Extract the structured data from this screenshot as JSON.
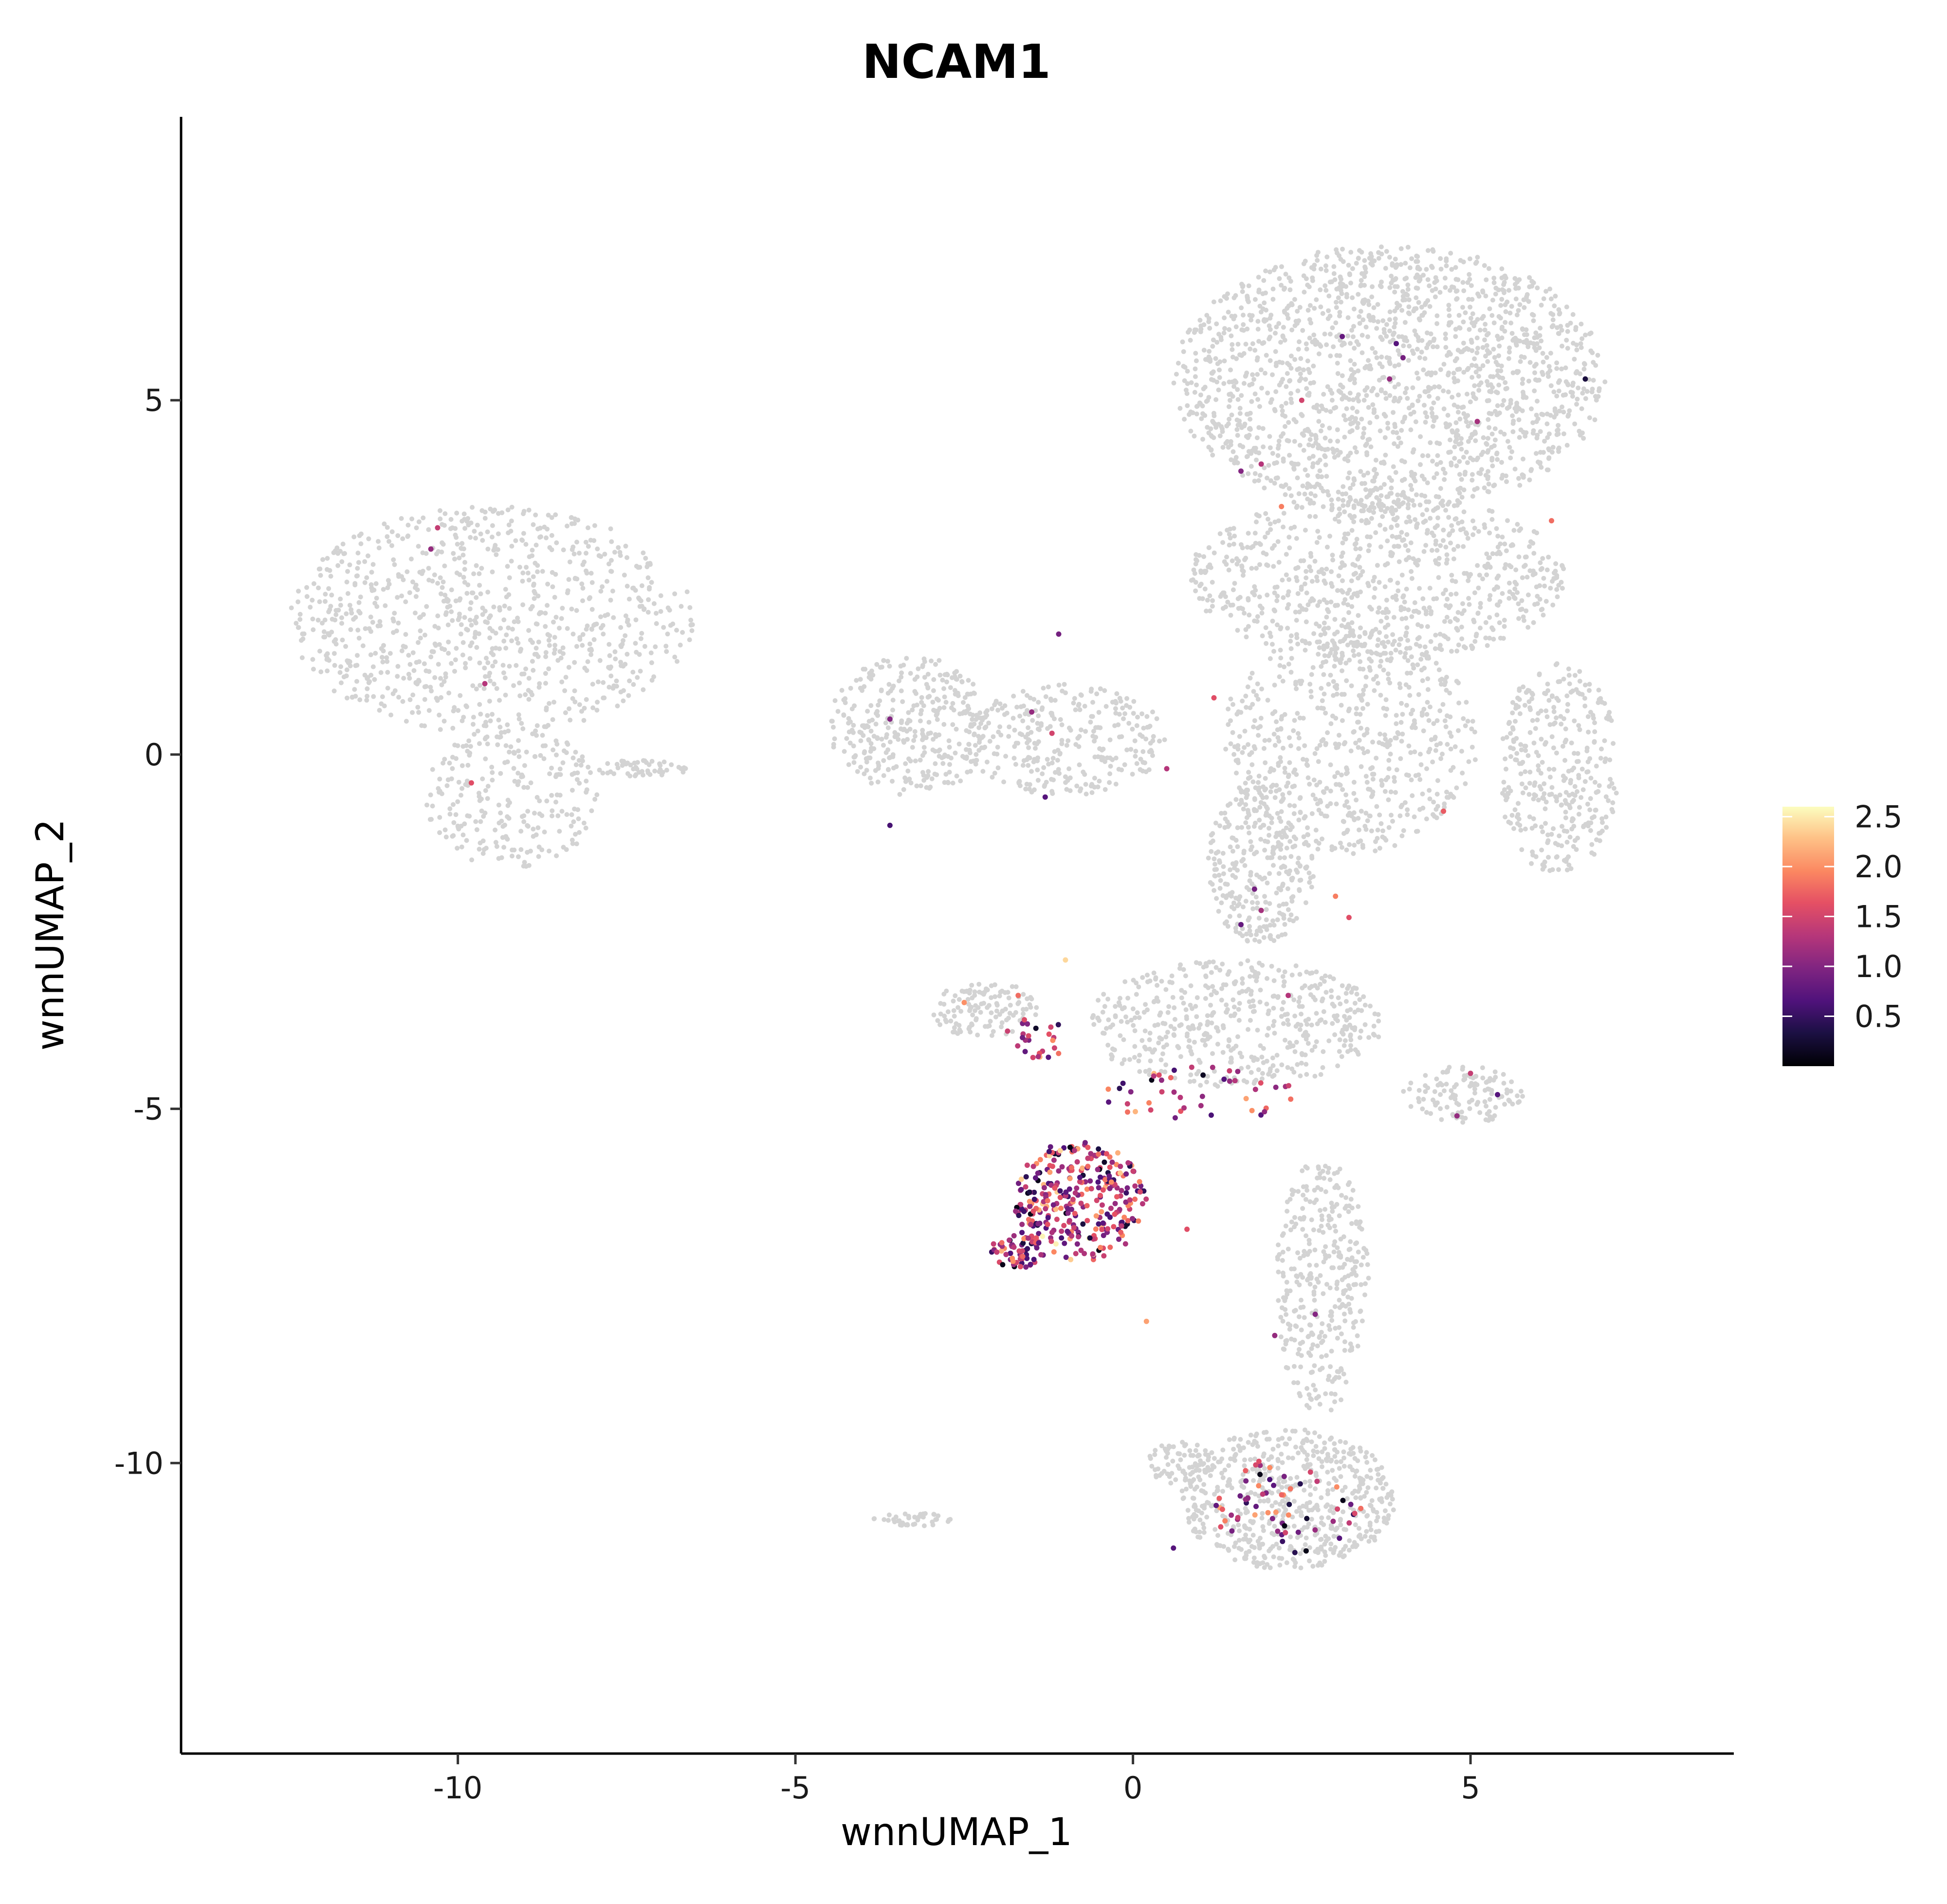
{
  "chart_data": {
    "type": "scatter",
    "title": "NCAM1",
    "xlabel": "wnnUMAP_1",
    "ylabel": "wnnUMAP_2",
    "xlim": [
      -14.1,
      8.9
    ],
    "ylim": [
      -14.1,
      9.0
    ],
    "x_ticks": [
      -10,
      -5,
      0,
      5
    ],
    "x_tick_labels": [
      "-10",
      "-5",
      "0",
      "5"
    ],
    "y_ticks": [
      5,
      0,
      -5,
      -10
    ],
    "y_tick_labels": [
      "5",
      "0",
      "-5",
      "-10"
    ],
    "background_color": "#d3d3d3",
    "colormap": "magma",
    "color_range": [
      0.0,
      2.6
    ],
    "legend": {
      "position": "right",
      "ticks": [
        2.5,
        2.0,
        1.5,
        1.0,
        0.5
      ],
      "tick_labels": [
        "2.5",
        "2.0",
        "1.5",
        "1.0",
        "0.5"
      ]
    },
    "background_clusters": [
      {
        "name": "left island",
        "cx": -9.5,
        "cy": 1.9,
        "rx": 3.0,
        "ry": 1.6,
        "n": 900
      },
      {
        "name": "left island tail",
        "cx": -9.2,
        "cy": -0.6,
        "rx": 1.3,
        "ry": 1.0,
        "n": 250
      },
      {
        "name": "streak",
        "cx": -7.3,
        "cy": -0.2,
        "rx": 0.7,
        "ry": 0.12,
        "n": 50
      },
      {
        "name": "mid left",
        "cx": -3.3,
        "cy": 0.4,
        "rx": 1.2,
        "ry": 1.0,
        "n": 350
      },
      {
        "name": "mid bridge",
        "cx": -1.0,
        "cy": 0.2,
        "rx": 1.5,
        "ry": 0.8,
        "n": 300
      },
      {
        "name": "top dome",
        "cx": 3.8,
        "cy": 5.3,
        "rx": 3.2,
        "ry": 1.9,
        "n": 1700
      },
      {
        "name": "top middle",
        "cx": 3.6,
        "cy": 2.5,
        "rx": 2.8,
        "ry": 1.2,
        "n": 800
      },
      {
        "name": "center",
        "cx": 3.2,
        "cy": 0.2,
        "rx": 1.9,
        "ry": 1.6,
        "n": 600
      },
      {
        "name": "right lobe",
        "cx": 6.3,
        "cy": -0.2,
        "rx": 0.9,
        "ry": 1.5,
        "n": 350
      },
      {
        "name": "stem",
        "cx": 1.9,
        "cy": -1.5,
        "rx": 0.8,
        "ry": 1.2,
        "n": 300
      },
      {
        "name": "lower band",
        "cx": 1.5,
        "cy": -3.8,
        "rx": 2.2,
        "ry": 0.9,
        "n": 500
      },
      {
        "name": "right arm",
        "cx": 4.9,
        "cy": -4.8,
        "rx": 0.9,
        "ry": 0.4,
        "n": 120
      },
      {
        "name": "lower stem",
        "cx": 2.8,
        "cy": -7.5,
        "rx": 0.7,
        "ry": 1.8,
        "n": 350
      },
      {
        "name": "bottom blob",
        "cx": 2.3,
        "cy": -10.5,
        "rx": 1.6,
        "ry": 1.0,
        "n": 600
      },
      {
        "name": "bottom left",
        "cx": 0.7,
        "cy": -10.0,
        "rx": 0.5,
        "ry": 0.3,
        "n": 70
      },
      {
        "name": "left arm",
        "cx": -2.2,
        "cy": -3.6,
        "rx": 0.8,
        "ry": 0.4,
        "n": 120
      },
      {
        "name": "small fragment",
        "cx": -3.3,
        "cy": -10.8,
        "rx": 0.6,
        "ry": 0.1,
        "n": 40
      }
    ],
    "expressing_clusters": [
      {
        "name": "NK cluster",
        "cx": -0.8,
        "cy": -6.3,
        "rx": 1.0,
        "ry": 0.85,
        "n": 320
      },
      {
        "name": "NK tip",
        "cx": -1.7,
        "cy": -7.0,
        "rx": 0.4,
        "ry": 0.25,
        "n": 60
      },
      {
        "name": "trail",
        "cx": 0.9,
        "cy": -4.8,
        "rx": 1.5,
        "ry": 0.4,
        "n": 45
      },
      {
        "name": "upper left",
        "cx": -1.4,
        "cy": -4.0,
        "rx": 0.5,
        "ry": 0.3,
        "n": 25
      },
      {
        "name": "bottom blob",
        "cx": 2.3,
        "cy": -10.6,
        "rx": 1.1,
        "ry": 0.7,
        "n": 60
      }
    ],
    "points": [
      {
        "x": -10.3,
        "y": 3.2,
        "value": 1.4
      },
      {
        "x": -10.4,
        "y": 2.9,
        "value": 1.1
      },
      {
        "x": -9.6,
        "y": 1.0,
        "value": 1.3
      },
      {
        "x": -9.8,
        "y": -0.4,
        "value": 1.6
      },
      {
        "x": -3.6,
        "y": 0.5,
        "value": 1.0
      },
      {
        "x": -3.6,
        "y": -1.0,
        "value": 0.6
      },
      {
        "x": -1.1,
        "y": 1.7,
        "value": 0.9
      },
      {
        "x": -1.5,
        "y": 0.6,
        "value": 1.1
      },
      {
        "x": -1.2,
        "y": 0.3,
        "value": 1.5
      },
      {
        "x": -1.3,
        "y": -0.6,
        "value": 0.7
      },
      {
        "x": 0.5,
        "y": -0.2,
        "value": 1.3
      },
      {
        "x": 1.2,
        "y": 0.8,
        "value": 1.6
      },
      {
        "x": 2.5,
        "y": 5.0,
        "value": 1.5
      },
      {
        "x": 3.1,
        "y": 5.9,
        "value": 0.8
      },
      {
        "x": 3.9,
        "y": 5.8,
        "value": 0.7
      },
      {
        "x": 3.8,
        "y": 5.3,
        "value": 1.1
      },
      {
        "x": 4.0,
        "y": 5.6,
        "value": 0.9
      },
      {
        "x": 5.1,
        "y": 4.7,
        "value": 1.2
      },
      {
        "x": 6.7,
        "y": 5.3,
        "value": 0.3
      },
      {
        "x": 1.6,
        "y": 4.0,
        "value": 1.0
      },
      {
        "x": 1.9,
        "y": 4.1,
        "value": 1.3
      },
      {
        "x": 2.2,
        "y": 3.5,
        "value": 1.9
      },
      {
        "x": 6.2,
        "y": 3.3,
        "value": 1.8
      },
      {
        "x": 4.6,
        "y": -0.8,
        "value": 1.7
      },
      {
        "x": 1.8,
        "y": -1.9,
        "value": 0.9
      },
      {
        "x": 1.9,
        "y": -2.2,
        "value": 1.2
      },
      {
        "x": 1.6,
        "y": -2.4,
        "value": 0.8
      },
      {
        "x": 3.0,
        "y": -2.0,
        "value": 1.9
      },
      {
        "x": 3.2,
        "y": -2.3,
        "value": 1.6
      },
      {
        "x": 2.3,
        "y": -3.4,
        "value": 1.3
      },
      {
        "x": 5.4,
        "y": -4.8,
        "value": 0.7
      },
      {
        "x": 5.0,
        "y": -4.5,
        "value": 1.4
      },
      {
        "x": 4.8,
        "y": -5.1,
        "value": 1.1
      },
      {
        "x": -1.0,
        "y": -2.9,
        "value": 2.4
      },
      {
        "x": -1.7,
        "y": -3.4,
        "value": 1.8
      },
      {
        "x": -2.5,
        "y": -3.5,
        "value": 2.0
      },
      {
        "x": 0.8,
        "y": -6.7,
        "value": 1.6
      },
      {
        "x": 0.2,
        "y": -8.0,
        "value": 2.1
      },
      {
        "x": 2.1,
        "y": -8.2,
        "value": 1.1
      },
      {
        "x": 2.7,
        "y": -7.9,
        "value": 1.0
      },
      {
        "x": 2.0,
        "y": -10.7,
        "value": 2.0
      },
      {
        "x": 1.3,
        "y": -10.9,
        "value": 1.6
      },
      {
        "x": 0.6,
        "y": -11.2,
        "value": 0.7
      }
    ]
  }
}
